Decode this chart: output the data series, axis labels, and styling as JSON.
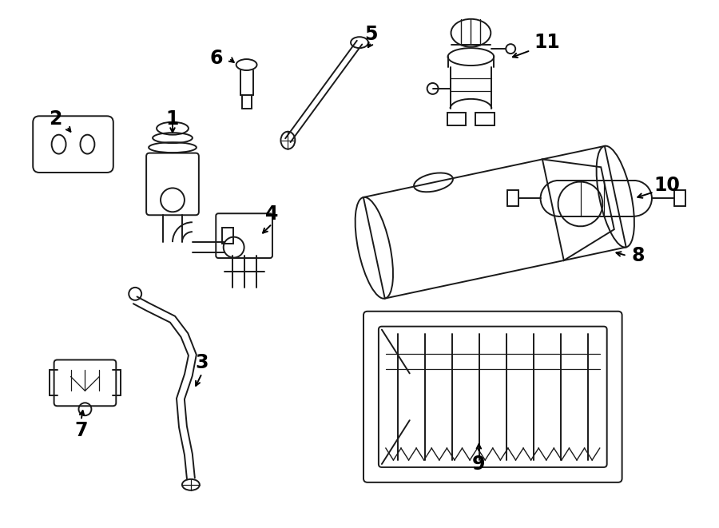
{
  "bg_color": "#ffffff",
  "line_color": "#1a1a1a",
  "lw": 1.4,
  "figsize": [
    9.0,
    6.61
  ],
  "dpi": 100
}
